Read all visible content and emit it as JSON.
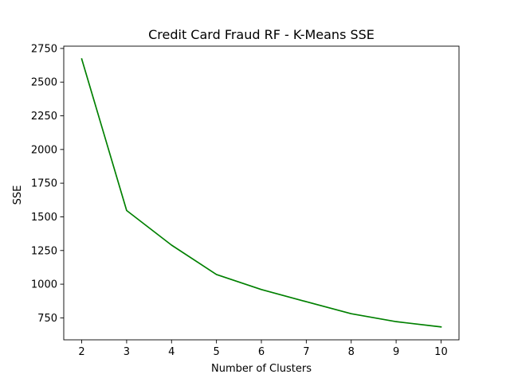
{
  "chart_data": {
    "type": "line",
    "title": "Credit Card Fraud RF - K-Means SSE",
    "xlabel": "Number of Clusters",
    "ylabel": "SSE",
    "x": [
      2,
      3,
      4,
      5,
      6,
      7,
      8,
      9,
      10
    ],
    "series": [
      {
        "values": [
          2672,
          1547,
          1290,
          1072,
          960,
          870,
          781,
          722,
          683
        ],
        "color": "#008000"
      }
    ],
    "xlim": [
      1.6,
      10.4
    ],
    "ylim": [
      587,
      2767
    ],
    "xticks": [
      "2",
      "3",
      "4",
      "5",
      "6",
      "7",
      "8",
      "9",
      "10"
    ],
    "yticks": [
      "750",
      "1000",
      "1250",
      "1500",
      "1750",
      "2000",
      "2250",
      "2500",
      "2750"
    ],
    "grid": false,
    "legend": false
  }
}
